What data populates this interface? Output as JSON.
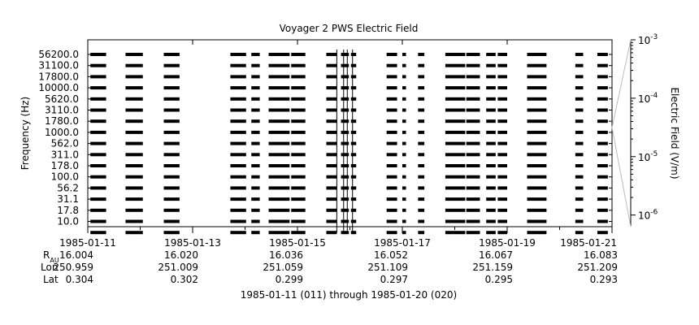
{
  "chart_data": {
    "type": "line",
    "title": "Voyager 2 PWS Electric Field",
    "ylabel": "Frequency (Hz)",
    "y2label": "Electric Field (V/m)",
    "footer": "1985-01-11 (011) through 1985-01-20 (020)",
    "channels": [
      "56200.0",
      "31100.0",
      "17800.0",
      "10000.0",
      "5620.0",
      "3110.0",
      "1780.0",
      "1000.0",
      "562.0",
      "311.0",
      "178.0",
      "100.0",
      "56.2",
      "31.1",
      "17.8",
      "10.0"
    ],
    "x_ticks": [
      "1985-01-11",
      "1985-01-13",
      "1985-01-15",
      "1985-01-17",
      "1985-01-19",
      "1985-01-21"
    ],
    "x_range_days": [
      0,
      10
    ],
    "colorbar_ticks": [
      {
        "base": "10",
        "exp": "-3"
      },
      {
        "base": "10",
        "exp": "-4"
      },
      {
        "base": "10",
        "exp": "-5"
      },
      {
        "base": "10",
        "exp": "-6"
      }
    ],
    "colorbar_range_log10": [
      -6.2,
      -3
    ],
    "ephemeris": {
      "labels": [
        {
          "main": "R",
          "sub": "AU"
        },
        {
          "main": "Lon",
          "sub": ""
        },
        {
          "main": "Lat",
          "sub": ""
        }
      ],
      "rows": [
        [
          "16.004",
          "16.020",
          "16.036",
          "16.052",
          "16.067",
          "16.083"
        ],
        [
          "250.959",
          "251.009",
          "251.059",
          "251.109",
          "251.159",
          "251.209"
        ],
        [
          "0.304",
          "0.302",
          "0.299",
          "0.297",
          "0.295",
          "0.293"
        ]
      ]
    },
    "segments_days": [
      [
        0.05,
        0.35
      ],
      [
        0.72,
        1.05
      ],
      [
        1.45,
        1.75
      ],
      [
        2.72,
        3.02
      ],
      [
        3.12,
        3.28
      ],
      [
        3.45,
        3.85
      ],
      [
        3.88,
        4.15
      ],
      [
        4.55,
        4.75
      ],
      [
        4.83,
        4.98
      ],
      [
        5.02,
        5.12
      ],
      [
        5.7,
        5.9
      ],
      [
        6.0,
        6.07
      ],
      [
        6.3,
        6.42
      ],
      [
        6.82,
        7.2
      ],
      [
        7.22,
        7.48
      ],
      [
        7.6,
        7.78
      ],
      [
        7.82,
        8.0
      ],
      [
        8.38,
        8.75
      ],
      [
        9.3,
        9.45
      ],
      [
        9.72,
        9.92
      ]
    ],
    "spikes_days": [
      4.75,
      4.88,
      4.95,
      5.05
    ],
    "grid": false
  }
}
